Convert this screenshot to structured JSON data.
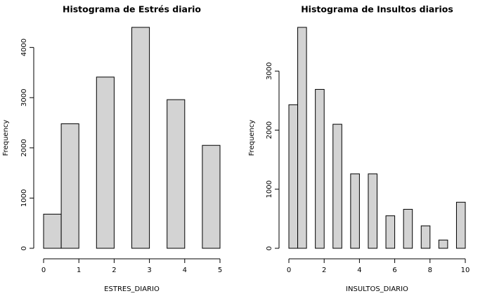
{
  "chart_data": [
    {
      "type": "histogram",
      "title": "Histograma de Estrés diario",
      "x_label": "ESTRES_DIARIO",
      "y_label": "Frequency",
      "bins": [
        0,
        0.5,
        1,
        1.5,
        2,
        2.5,
        3,
        3.5,
        4,
        4.5,
        5
      ],
      "values": [
        680,
        2480,
        0,
        3410,
        0,
        4400,
        0,
        2960,
        0,
        2050
      ],
      "color": "#d3d3d3",
      "xlim": [
        0,
        5
      ],
      "xticks": [
        0,
        1,
        2,
        3,
        4,
        5
      ],
      "ylim": [
        0,
        4400
      ],
      "yticks": [
        0,
        1000,
        2000,
        3000,
        4000
      ]
    },
    {
      "type": "histogram",
      "title": "Histograma de Insultos diarios",
      "x_label": "INSULTOS_DIARIO",
      "y_label": "Frequency",
      "bins": [
        0,
        0.5,
        1,
        1.5,
        2,
        2.5,
        3,
        3.5,
        4,
        4.5,
        5,
        5.5,
        6,
        6.5,
        7,
        7.5,
        8,
        8.5,
        9,
        9.5,
        10
      ],
      "values": [
        2430,
        3740,
        0,
        2690,
        0,
        2100,
        0,
        1260,
        0,
        1260,
        0,
        550,
        0,
        660,
        0,
        380,
        0,
        140,
        0,
        780
      ],
      "color": "#d3d3d3",
      "xlim": [
        0,
        10
      ],
      "xticks": [
        0,
        2,
        4,
        6,
        8,
        10
      ],
      "ylim": [
        0,
        3740
      ],
      "yticks": [
        0,
        1000,
        2000,
        3000
      ]
    }
  ]
}
